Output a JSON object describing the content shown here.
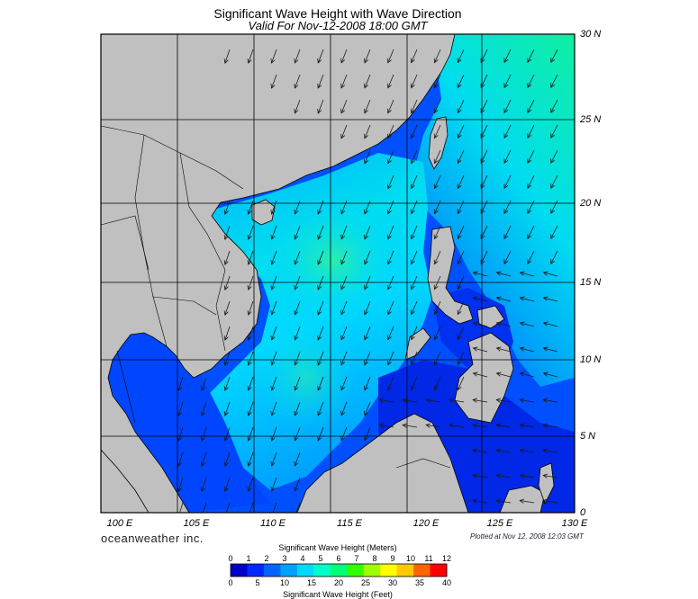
{
  "title": "Significant Wave Height with Wave Direction",
  "subtitle": "Valid For Nov-12-2008 18:00 GMT",
  "brand": "oceanweather inc.",
  "plotted": "Plotted at Nov 12, 2008 12:03 GMT",
  "lat_labels": [
    "30 N",
    "25 N",
    "20 N",
    "15 N",
    "10 N",
    "5 N",
    "0"
  ],
  "lon_labels": [
    "100 E",
    "105 E",
    "110 E",
    "115 E",
    "120 E",
    "125 E",
    "130 E"
  ],
  "legend": {
    "meters_title": "Significant Wave Height (Meters)",
    "feet_title": "Significant Wave Height (Feet)",
    "meters_ticks": [
      "0",
      "1",
      "2",
      "3",
      "4",
      "5",
      "6",
      "7",
      "8",
      "9",
      "10",
      "11",
      "12"
    ],
    "feet_ticks": [
      "0",
      "5",
      "10",
      "15",
      "20",
      "25",
      "30",
      "35",
      "40"
    ],
    "colors": [
      "#0000c8",
      "#0028ff",
      "#0064ff",
      "#00a0ff",
      "#00d8ff",
      "#00ffc8",
      "#00ff78",
      "#32ff00",
      "#a0ff00",
      "#ffff00",
      "#ffc800",
      "#ff6400",
      "#ff0000"
    ]
  },
  "map_colors": {
    "land": "#c0c0c0",
    "deep_blue": "#0014d8",
    "blue": "#0046ff",
    "mid_blue": "#0078ff",
    "cyan_blue": "#00b4ff",
    "cyan": "#00dcf0",
    "aqua": "#00f0c8",
    "green": "#10f0a0",
    "dark": "#101050"
  }
}
